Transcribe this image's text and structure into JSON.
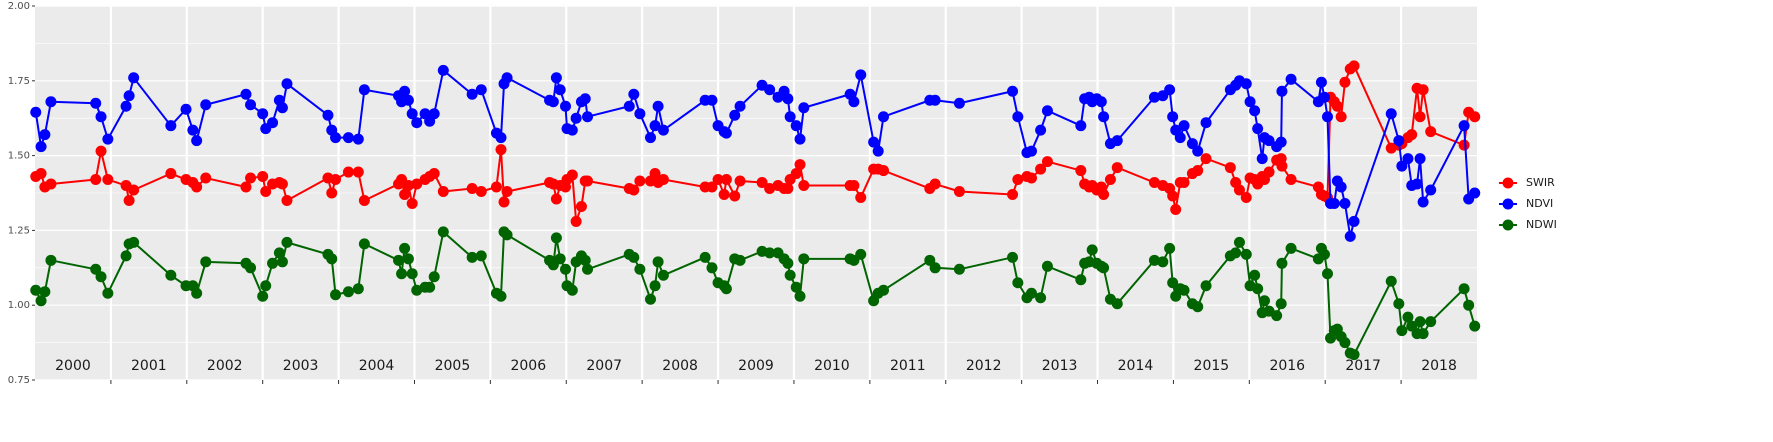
{
  "chart_data": {
    "type": "line",
    "x": [
      2000.01,
      2000.08,
      2000.13,
      2000.21,
      2000.8,
      2000.87,
      2000.96,
      2001.2,
      2001.24,
      2001.3,
      2001.79,
      2001.99,
      2002.08,
      2002.13,
      2002.25,
      2002.78,
      2002.84,
      2003.0,
      2003.04,
      2003.13,
      2003.22,
      2003.26,
      2003.32,
      2003.86,
      2003.91,
      2003.96,
      2004.13,
      2004.26,
      2004.34,
      2004.79,
      2004.83,
      2004.87,
      2004.92,
      2004.97,
      2005.03,
      2005.14,
      2005.2,
      2005.26,
      2005.38,
      2005.76,
      2005.88,
      2006.08,
      2006.14,
      2006.18,
      2006.22,
      2006.78,
      2006.83,
      2006.87,
      2006.92,
      2006.99,
      2007.01,
      2007.08,
      2007.13,
      2007.2,
      2007.25,
      2007.28,
      2007.83,
      2007.89,
      2007.97,
      2008.11,
      2008.17,
      2008.21,
      2008.28,
      2008.83,
      2008.92,
      2009.0,
      2009.08,
      2009.11,
      2009.22,
      2009.29,
      2009.58,
      2009.68,
      2009.79,
      2009.87,
      2009.92,
      2009.95,
      2010.03,
      2010.08,
      2010.13,
      2010.74,
      2010.79,
      2010.88,
      2011.05,
      2011.11,
      2011.18,
      2011.79,
      2011.86,
      2012.18,
      2012.88,
      2012.95,
      2013.07,
      2013.13,
      2013.25,
      2013.34,
      2013.78,
      2013.83,
      2013.89,
      2013.93,
      2013.99,
      2014.05,
      2014.08,
      2014.17,
      2014.26,
      2014.75,
      2014.86,
      2014.95,
      2014.99,
      2015.03,
      2015.09,
      2015.14,
      2015.25,
      2015.32,
      2015.43,
      2015.75,
      2015.82,
      2015.87,
      2015.96,
      2016.01,
      2016.07,
      2016.11,
      2016.17,
      2016.2,
      2016.26,
      2016.36,
      2016.42,
      2016.43,
      2016.55,
      2016.91,
      2016.95,
      2016.99,
      2017.03,
      2017.07,
      2017.12,
      2017.16,
      2017.21,
      2017.26,
      2017.33,
      2017.38,
      2017.87,
      2017.97,
      2018.01,
      2018.09,
      2018.14,
      2018.21,
      2018.25,
      2018.29,
      2018.39,
      2018.83,
      2018.89,
      2018.97
    ],
    "series": [
      {
        "name": "SWIR",
        "color": "#ff0000",
        "values": [
          1.43,
          1.44,
          1.395,
          1.405,
          1.42,
          1.515,
          1.42,
          1.4,
          1.35,
          1.385,
          1.44,
          1.42,
          1.41,
          1.395,
          1.425,
          1.395,
          1.425,
          1.43,
          1.38,
          1.405,
          1.41,
          1.405,
          1.35,
          1.425,
          1.375,
          1.42,
          1.445,
          1.445,
          1.35,
          1.405,
          1.42,
          1.37,
          1.4,
          1.34,
          1.405,
          1.42,
          1.43,
          1.44,
          1.38,
          1.39,
          1.38,
          1.395,
          1.52,
          1.345,
          1.38,
          1.41,
          1.405,
          1.355,
          1.4,
          1.395,
          1.42,
          1.435,
          1.28,
          1.33,
          1.415,
          1.415,
          1.39,
          1.385,
          1.415,
          1.415,
          1.44,
          1.41,
          1.42,
          1.395,
          1.395,
          1.42,
          1.37,
          1.42,
          1.365,
          1.415,
          1.41,
          1.39,
          1.4,
          1.39,
          1.39,
          1.42,
          1.44,
          1.47,
          1.4,
          1.4,
          1.4,
          1.36,
          1.455,
          1.455,
          1.45,
          1.39,
          1.405,
          1.38,
          1.37,
          1.42,
          1.43,
          1.425,
          1.455,
          1.48,
          1.45,
          1.405,
          1.395,
          1.4,
          1.385,
          1.395,
          1.37,
          1.42,
          1.46,
          1.41,
          1.4,
          1.39,
          1.365,
          1.32,
          1.41,
          1.41,
          1.44,
          1.45,
          1.49,
          1.46,
          1.41,
          1.385,
          1.36,
          1.425,
          1.42,
          1.405,
          1.43,
          1.42,
          1.445,
          1.485,
          1.49,
          1.465,
          1.42,
          1.395,
          1.37,
          1.365,
          1.36,
          1.695,
          1.68,
          1.665,
          1.63,
          1.745,
          1.79,
          1.8,
          1.525,
          1.535,
          1.54,
          1.56,
          1.57,
          1.725,
          1.63,
          1.72,
          1.58,
          1.535,
          1.645,
          1.63
        ]
      },
      {
        "name": "NDVI",
        "color": "#0000ff",
        "values": [
          1.645,
          1.53,
          1.57,
          1.68,
          1.675,
          1.63,
          1.555,
          1.665,
          1.7,
          1.76,
          1.6,
          1.655,
          1.585,
          1.55,
          1.67,
          1.705,
          1.67,
          1.64,
          1.59,
          1.61,
          1.685,
          1.66,
          1.74,
          1.635,
          1.585,
          1.56,
          1.56,
          1.555,
          1.72,
          1.7,
          1.68,
          1.715,
          1.685,
          1.64,
          1.61,
          1.64,
          1.615,
          1.64,
          1.785,
          1.705,
          1.72,
          1.575,
          1.56,
          1.74,
          1.76,
          1.685,
          1.68,
          1.76,
          1.72,
          1.665,
          1.59,
          1.585,
          1.625,
          1.68,
          1.69,
          1.63,
          1.665,
          1.705,
          1.64,
          1.56,
          1.6,
          1.665,
          1.585,
          1.685,
          1.685,
          1.6,
          1.58,
          1.575,
          1.635,
          1.665,
          1.735,
          1.72,
          1.695,
          1.715,
          1.69,
          1.63,
          1.6,
          1.555,
          1.66,
          1.705,
          1.68,
          1.77,
          1.545,
          1.515,
          1.63,
          1.685,
          1.685,
          1.675,
          1.715,
          1.63,
          1.51,
          1.515,
          1.585,
          1.65,
          1.6,
          1.69,
          1.695,
          1.68,
          1.69,
          1.68,
          1.63,
          1.54,
          1.55,
          1.695,
          1.7,
          1.72,
          1.63,
          1.585,
          1.56,
          1.6,
          1.54,
          1.515,
          1.61,
          1.72,
          1.735,
          1.75,
          1.74,
          1.68,
          1.65,
          1.59,
          1.49,
          1.56,
          1.55,
          1.53,
          1.545,
          1.715,
          1.755,
          1.68,
          1.745,
          1.695,
          1.63,
          1.34,
          1.34,
          1.415,
          1.395,
          1.34,
          1.23,
          1.28,
          1.64,
          1.55,
          1.465,
          1.49,
          1.4,
          1.405,
          1.49,
          1.345,
          1.385,
          1.6,
          1.355,
          1.375
        ]
      },
      {
        "name": "NDWI",
        "color": "#006400",
        "values": [
          1.05,
          1.015,
          1.045,
          1.15,
          1.12,
          1.095,
          1.04,
          1.165,
          1.205,
          1.21,
          1.1,
          1.065,
          1.065,
          1.04,
          1.145,
          1.14,
          1.125,
          1.03,
          1.065,
          1.14,
          1.175,
          1.145,
          1.21,
          1.17,
          1.155,
          1.035,
          1.045,
          1.055,
          1.205,
          1.15,
          1.105,
          1.19,
          1.155,
          1.105,
          1.05,
          1.06,
          1.06,
          1.095,
          1.245,
          1.16,
          1.165,
          1.04,
          1.03,
          1.245,
          1.235,
          1.15,
          1.135,
          1.225,
          1.155,
          1.12,
          1.065,
          1.05,
          1.145,
          1.165,
          1.15,
          1.12,
          1.17,
          1.16,
          1.12,
          1.02,
          1.065,
          1.145,
          1.1,
          1.16,
          1.125,
          1.075,
          1.065,
          1.055,
          1.155,
          1.15,
          1.18,
          1.175,
          1.175,
          1.155,
          1.14,
          1.1,
          1.06,
          1.03,
          1.155,
          1.155,
          1.15,
          1.17,
          1.015,
          1.04,
          1.05,
          1.15,
          1.125,
          1.12,
          1.16,
          1.075,
          1.025,
          1.04,
          1.025,
          1.13,
          1.085,
          1.14,
          1.145,
          1.185,
          1.14,
          1.13,
          1.125,
          1.02,
          1.005,
          1.15,
          1.145,
          1.19,
          1.075,
          1.03,
          1.055,
          1.05,
          1.005,
          0.995,
          1.065,
          1.165,
          1.175,
          1.21,
          1.17,
          1.065,
          1.1,
          1.055,
          0.975,
          1.015,
          0.98,
          0.965,
          1.005,
          1.14,
          1.19,
          1.155,
          1.19,
          1.17,
          1.105,
          0.89,
          0.915,
          0.92,
          0.895,
          0.875,
          0.84,
          0.835,
          1.08,
          1.005,
          0.915,
          0.96,
          0.93,
          0.905,
          0.945,
          0.905,
          0.945,
          1.055,
          1.0,
          0.93
        ]
      }
    ],
    "xlim": [
      2000,
      2019
    ],
    "xticks": [
      {
        "value": 2000.5,
        "label": "2000"
      },
      {
        "value": 2001.5,
        "label": "2001"
      },
      {
        "value": 2002.5,
        "label": "2002"
      },
      {
        "value": 2003.5,
        "label": "2003"
      },
      {
        "value": 2004.5,
        "label": "2004"
      },
      {
        "value": 2005.5,
        "label": "2005"
      },
      {
        "value": 2006.5,
        "label": "2006"
      },
      {
        "value": 2007.5,
        "label": "2007"
      },
      {
        "value": 2008.5,
        "label": "2008"
      },
      {
        "value": 2009.5,
        "label": "2009"
      },
      {
        "value": 2010.5,
        "label": "2010"
      },
      {
        "value": 2011.5,
        "label": "2011"
      },
      {
        "value": 2012.5,
        "label": "2012"
      },
      {
        "value": 2013.5,
        "label": "2013"
      },
      {
        "value": 2014.5,
        "label": "2014"
      },
      {
        "value": 2015.5,
        "label": "2015"
      },
      {
        "value": 2016.5,
        "label": "2016"
      },
      {
        "value": 2017.5,
        "label": "2017"
      },
      {
        "value": 2018.5,
        "label": "2018"
      }
    ],
    "xgrid": [
      2001,
      2002,
      2003,
      2004,
      2005,
      2006,
      2007,
      2008,
      2009,
      2010,
      2011,
      2012,
      2013,
      2014,
      2015,
      2016,
      2017,
      2018
    ],
    "ylim": [
      0.75,
      2
    ],
    "yticks": [
      0.75,
      {
        "value": 1,
        "label": "1.00"
      },
      1.25,
      {
        "value": 1.5,
        "label": "1.50"
      },
      1.75,
      {
        "value": 2,
        "label": "2.00"
      }
    ],
    "y_minor_grid": [
      0.875,
      1.125,
      1.375,
      1.625,
      1.875
    ],
    "grid": true,
    "legend": "right"
  }
}
